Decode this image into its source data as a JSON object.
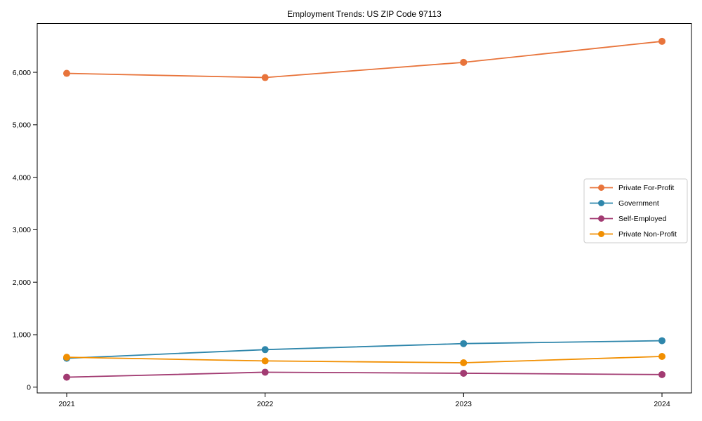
{
  "chart_data": {
    "type": "line",
    "title": "Employment Trends: US ZIP Code 97113",
    "xlabel": "",
    "ylabel": "",
    "categories": [
      "2021",
      "2022",
      "2023",
      "2024"
    ],
    "series": [
      {
        "name": "Private For-Profit",
        "color": "#E8743B",
        "values": [
          5980,
          5900,
          6190,
          6590
        ]
      },
      {
        "name": "Government",
        "color": "#2E86AB",
        "values": [
          550,
          715,
          830,
          885
        ]
      },
      {
        "name": "Self-Employed",
        "color": "#A23B72",
        "values": [
          190,
          285,
          265,
          240
        ]
      },
      {
        "name": "Private Non-Profit",
        "color": "#F18F01",
        "values": [
          570,
          500,
          465,
          585
        ]
      }
    ],
    "ylim": [
      -110,
      6930
    ],
    "yticks": [
      {
        "value": 0,
        "label": "0"
      },
      {
        "value": 1000,
        "label": "1,000"
      },
      {
        "value": 2000,
        "label": "2,000"
      },
      {
        "value": 3000,
        "label": "3,000"
      },
      {
        "value": 4000,
        "label": "4,000"
      },
      {
        "value": 5000,
        "label": "5,000"
      },
      {
        "value": 6000,
        "label": "6,000"
      }
    ],
    "legend_position": "center-right",
    "grid": false,
    "axis_color": "#000000",
    "text_color": "#000000",
    "legend_border_color": "#cccccc"
  }
}
